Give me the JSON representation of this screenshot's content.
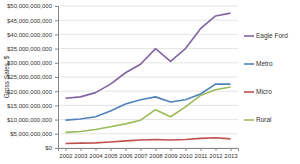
{
  "chart_data": {
    "type": "line",
    "y_label": "Gross Sales, $",
    "categories": [
      "2002",
      "2003",
      "2004",
      "2005",
      "2006",
      "2007",
      "2008",
      "2009",
      "2010",
      "2011",
      "2012",
      "2013"
    ],
    "series": [
      {
        "name": "Eagle Ford",
        "color": "#8064a2",
        "values": [
          17500000000,
          18000000000,
          19500000000,
          22500000000,
          26500000000,
          29500000000,
          35000000000,
          30500000000,
          35000000000,
          42000000000,
          46500000000,
          47500000000
        ]
      },
      {
        "name": "Metro",
        "color": "#4f81bd",
        "values": [
          9800000000,
          10200000000,
          11000000000,
          13000000000,
          15500000000,
          17000000000,
          18000000000,
          16200000000,
          17000000000,
          19000000000,
          22500000000,
          22500000000
        ]
      },
      {
        "name": "Micro",
        "color": "#c0504d",
        "values": [
          1600000000,
          1700000000,
          1800000000,
          2100000000,
          2500000000,
          2800000000,
          3000000000,
          2800000000,
          3000000000,
          3400000000,
          3600000000,
          3200000000
        ]
      },
      {
        "name": "Rural",
        "color": "#9bbb59",
        "values": [
          5500000000,
          5800000000,
          6500000000,
          7500000000,
          8500000000,
          9800000000,
          13500000000,
          11000000000,
          14500000000,
          18500000000,
          20500000000,
          21500000000
        ]
      }
    ],
    "ylim": [
      0,
      50000000000
    ],
    "yticks": [
      {
        "value": 0,
        "label": "$0"
      },
      {
        "value": 5000000000,
        "label": "$5,000,000,000"
      },
      {
        "value": 10000000000,
        "label": "$10,000,000,000"
      },
      {
        "value": 15000000000,
        "label": "$15,000,000,000"
      },
      {
        "value": 20000000000,
        "label": "$20,000,000,000"
      },
      {
        "value": 25000000000,
        "label": "$25,000,000,000"
      },
      {
        "value": 30000000000,
        "label": "$30,000,000,000"
      },
      {
        "value": 35000000000,
        "label": "$35,000,000,000"
      },
      {
        "value": 40000000000,
        "label": "$40,000,000,000"
      },
      {
        "value": 45000000000,
        "label": "$45,000,000,000"
      },
      {
        "value": 50000000000,
        "label": "$50,000,000,000"
      }
    ],
    "grid": true,
    "legend": "right"
  }
}
